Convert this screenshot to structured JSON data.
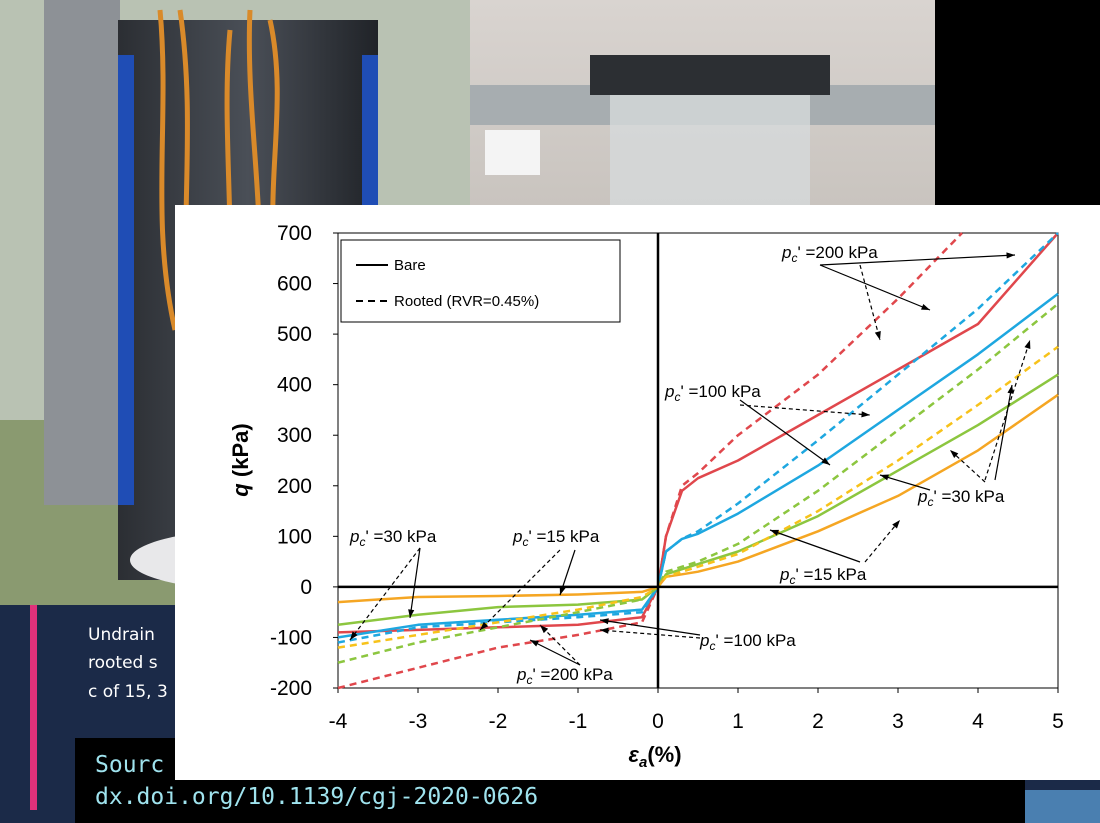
{
  "slide": {
    "caption_lines": [
      "Undrain",
      "rooted s",
      "c of 15, 3"
    ],
    "source_lines": [
      "Sourc",
      "dx.doi.org/10.1139/cgj-2020-0626"
    ]
  },
  "chart_data": {
    "type": "line",
    "xlabel": {
      "symbol": "ε",
      "sub": "a",
      "unit": "(%)"
    },
    "ylabel": {
      "symbol": "q",
      "unit": " (kPa)"
    },
    "xlim": [
      -4,
      5
    ],
    "xticks": [
      -4,
      -3,
      -2,
      -1,
      0,
      1,
      2,
      3,
      4,
      5
    ],
    "ylim": [
      -200,
      700
    ],
    "yticks": [
      -200,
      -100,
      0,
      100,
      200,
      300,
      400,
      500,
      600,
      700
    ],
    "legend": [
      {
        "label": "Bare",
        "dashed": false
      },
      {
        "label": "Rooted (RVR=0.45%)",
        "dashed": true
      }
    ],
    "series": [
      {
        "color": "#e0474c",
        "dashed": false,
        "x": [
          -4,
          -3,
          -2,
          -1,
          -0.2,
          0,
          0.1,
          0.3,
          0.5,
          1,
          2,
          3,
          4,
          5
        ],
        "values": [
          -90,
          -85,
          -80,
          -75,
          -60,
          0,
          100,
          190,
          215,
          250,
          340,
          430,
          520,
          700
        ]
      },
      {
        "color": "#e0474c",
        "dashed": true,
        "x": [
          -4,
          -3,
          -2,
          -1,
          -0.2,
          0,
          0.1,
          0.3,
          0.5,
          1,
          2,
          3,
          3.8
        ],
        "values": [
          -200,
          -160,
          -120,
          -95,
          -70,
          0,
          100,
          200,
          225,
          300,
          420,
          570,
          700
        ]
      },
      {
        "color": "#1ea7e0",
        "dashed": false,
        "x": [
          -4,
          -3,
          -2,
          -1,
          -0.2,
          0,
          0.1,
          0.3,
          0.5,
          1,
          2,
          3,
          4,
          5
        ],
        "values": [
          -100,
          -75,
          -65,
          -55,
          -45,
          0,
          70,
          95,
          105,
          145,
          240,
          350,
          460,
          580
        ]
      },
      {
        "color": "#1ea7e0",
        "dashed": true,
        "x": [
          -4,
          -3,
          -2,
          -1,
          -0.2,
          0,
          0.1,
          0.3,
          0.5,
          1,
          2,
          3,
          4,
          5
        ],
        "values": [
          -110,
          -80,
          -70,
          -60,
          -50,
          0,
          70,
          95,
          110,
          165,
          290,
          420,
          550,
          700
        ]
      },
      {
        "color": "#8cc63f",
        "dashed": false,
        "x": [
          -4,
          -3,
          -2,
          -1,
          -0.2,
          0,
          0.1,
          0.3,
          0.5,
          1,
          2,
          3,
          4,
          5
        ],
        "values": [
          -75,
          -55,
          -40,
          -35,
          -25,
          0,
          25,
          35,
          45,
          70,
          140,
          230,
          320,
          420
        ]
      },
      {
        "color": "#8cc63f",
        "dashed": true,
        "x": [
          -4,
          -3,
          -2,
          -1,
          -0.2,
          0,
          0.1,
          0.3,
          0.5,
          1,
          2,
          3,
          4,
          5
        ],
        "values": [
          -150,
          -110,
          -80,
          -50,
          -25,
          0,
          30,
          40,
          50,
          85,
          190,
          310,
          430,
          560
        ]
      },
      {
        "color": "#f5a623",
        "dashed": false,
        "x": [
          -4,
          -3,
          -2,
          -1,
          -0.2,
          0,
          0.1,
          0.3,
          0.5,
          1,
          2,
          3,
          4,
          5
        ],
        "values": [
          -30,
          -20,
          -18,
          -15,
          -10,
          0,
          20,
          25,
          30,
          50,
          110,
          180,
          270,
          380
        ]
      },
      {
        "color": "#f7c21a",
        "dashed": true,
        "x": [
          -4,
          -3,
          -2,
          -1,
          -0.2,
          0,
          0.1,
          0.3,
          0.5,
          1,
          2,
          3,
          4,
          5
        ],
        "values": [
          -120,
          -95,
          -70,
          -45,
          -20,
          0,
          20,
          30,
          40,
          65,
          150,
          250,
          360,
          475
        ]
      }
    ],
    "annotations": [
      {
        "var": "p",
        "sub": "c",
        "text": "' =200 kPa"
      },
      {
        "var": "p",
        "sub": "c",
        "text": "' =100 kPa"
      },
      {
        "var": "p",
        "sub": "c",
        "text": "' =30 kPa"
      },
      {
        "var": "p",
        "sub": "c",
        "text": "' =15 kPa"
      },
      {
        "var": "p",
        "sub": "c",
        "text": "' =30 kPa"
      },
      {
        "var": "p",
        "sub": "c",
        "text": "' =15 kPa"
      },
      {
        "var": "p",
        "sub": "c",
        "text": "' =100 kPa"
      },
      {
        "var": "p",
        "sub": "c",
        "text": "' =200 kPa"
      }
    ]
  }
}
